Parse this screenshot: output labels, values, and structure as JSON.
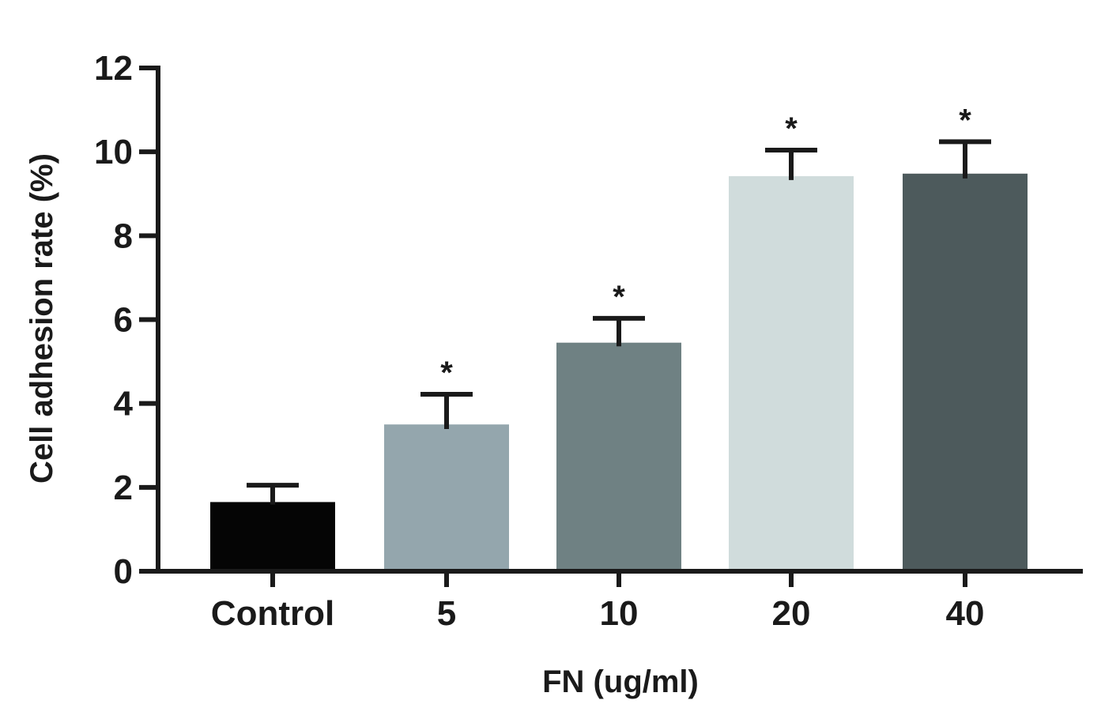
{
  "chart_data": {
    "type": "bar",
    "title": "",
    "xlabel": "FN (ug/ml)",
    "ylabel": "Cell adhesion rate (%)",
    "ylim": [
      0,
      12
    ],
    "yticks": [
      "0",
      "2",
      "4",
      "6",
      "8",
      "10",
      "12"
    ],
    "categories": [
      "Control",
      "5",
      "10",
      "20",
      "40"
    ],
    "values": [
      1.65,
      3.5,
      5.45,
      9.42,
      9.48
    ],
    "errors": [
      0.4,
      0.72,
      0.58,
      0.62,
      0.76
    ],
    "significance": [
      "",
      "*",
      "*",
      "*",
      "*"
    ],
    "bar_colors": [
      "#050505",
      "#94a6ad",
      "#6f8183",
      "#d0dcdc",
      "#4d5a5c"
    ],
    "grid": false,
    "legend": "none"
  }
}
